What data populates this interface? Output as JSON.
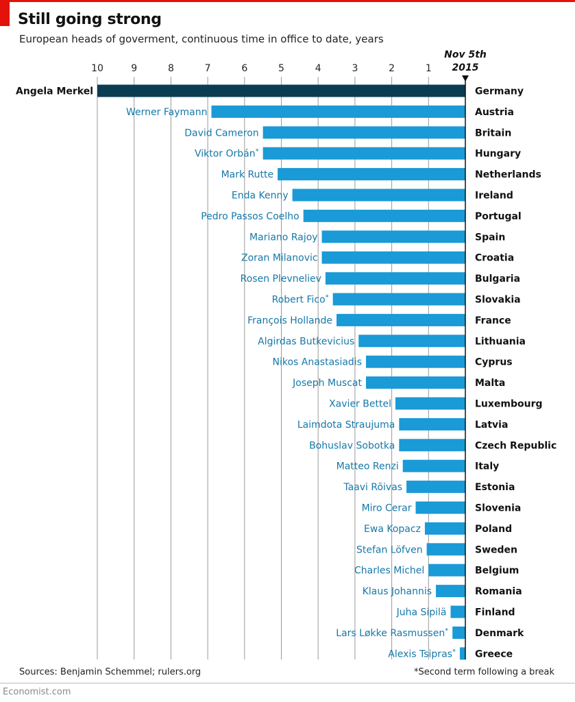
{
  "header": {
    "title": "Still going strong",
    "subtitle": "European heads of goverment, continuous time in office to date, years"
  },
  "footer": {
    "sources": "Sources: Benjamin Schemmel; rulers.org",
    "note": "*Second term following a break",
    "brand": "Economist.com"
  },
  "colors": {
    "highlight": "#0b3d52",
    "bar": "#1a9ad6",
    "label_highlight": "#111111",
    "label": "#1578a8",
    "grid": "#999999",
    "accent": "#e3120b"
  },
  "chart_data": {
    "type": "bar",
    "orientation": "horizontal",
    "title": "Still going strong",
    "subtitle": "European heads of goverment, continuous time in office to date, years",
    "date_label_line1": "Nov 5th",
    "date_label_line2": "2015",
    "xlim": [
      0,
      10
    ],
    "x_reversed": true,
    "ticks": [
      "10",
      "9",
      "8",
      "7",
      "6",
      "5",
      "4",
      "3",
      "2",
      "1"
    ],
    "grid": true,
    "categories": [
      "Germany",
      "Austria",
      "Britain",
      "Hungary",
      "Netherlands",
      "Ireland",
      "Portugal",
      "Spain",
      "Croatia",
      "Bulgaria",
      "Slovakia",
      "France",
      "Lithuania",
      "Cyprus",
      "Malta",
      "Luxembourg",
      "Latvia",
      "Czech Republic",
      "Italy",
      "Estonia",
      "Slovenia",
      "Poland",
      "Sweden",
      "Belgium",
      "Romania",
      "Finland",
      "Denmark",
      "Greece"
    ],
    "leaders": [
      "Angela Merkel",
      "Werner Faymann",
      "David Cameron",
      "Viktor Orbán",
      "Mark Rutte",
      "Enda Kenny",
      "Pedro Passos Coelho",
      "Mariano Rajoy",
      "Zoran Milanovic",
      "Rosen Plevneliev",
      "Robert Fico",
      "François Hollande",
      "Algirdas Butkevicius",
      "Nikos Anastasiadis",
      "Joseph Muscat",
      "Xavier Bettel",
      "Laimdota Straujuma",
      "Bohuslav Sobotka",
      "Matteo Renzi",
      "Taavi Rõivas",
      "Miro Cerar",
      "Ewa Kopacz",
      "Stefan Löfven",
      "Charles Michel",
      "Klaus Johannis",
      "Juha Sipilä",
      "Lars Løkke Rasmussen",
      "Alexis Tsipras"
    ],
    "second_term": [
      false,
      false,
      false,
      true,
      false,
      false,
      false,
      false,
      false,
      false,
      true,
      false,
      false,
      false,
      false,
      false,
      false,
      false,
      false,
      false,
      false,
      false,
      false,
      false,
      false,
      false,
      true,
      true
    ],
    "values": [
      10.0,
      6.9,
      5.5,
      5.5,
      5.1,
      4.7,
      4.4,
      3.9,
      3.9,
      3.8,
      3.6,
      3.5,
      2.9,
      2.7,
      2.7,
      1.9,
      1.8,
      1.8,
      1.7,
      1.6,
      1.35,
      1.1,
      1.05,
      1.0,
      0.8,
      0.4,
      0.35,
      0.15
    ],
    "highlight_index": 0
  }
}
